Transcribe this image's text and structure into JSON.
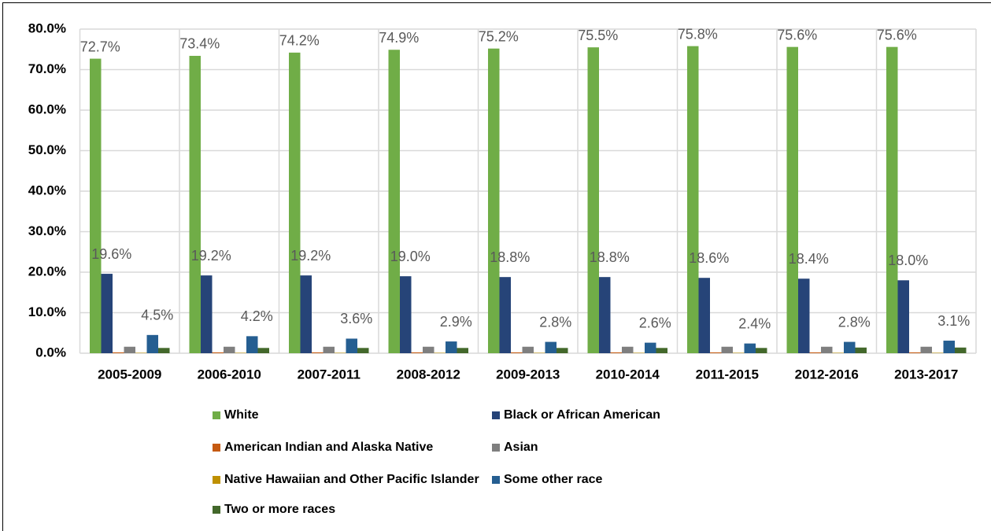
{
  "chart_data": {
    "type": "bar",
    "categories": [
      "2005-2009",
      "2006-2010",
      "2007-2011",
      "2008-2012",
      "2009-2013",
      "2010-2014",
      "2011-2015",
      "2012-2016",
      "2013-2017"
    ],
    "series": [
      {
        "name": "White",
        "color": "#70ad47",
        "values": [
          72.7,
          73.4,
          74.2,
          74.9,
          75.2,
          75.5,
          75.8,
          75.6,
          75.6
        ],
        "value_labels": [
          "72.7%",
          "73.4%",
          "74.2%",
          "74.9%",
          "75.2%",
          "75.5%",
          "75.8%",
          "75.6%",
          "75.6%"
        ]
      },
      {
        "name": "Black or African American",
        "color": "#264478",
        "values": [
          19.6,
          19.2,
          19.2,
          19.0,
          18.8,
          18.8,
          18.6,
          18.4,
          18.0
        ],
        "value_labels": [
          "19.6%",
          "19.2%",
          "19.2%",
          "19.0%",
          "18.8%",
          "18.8%",
          "18.6%",
          "18.4%",
          "18.0%"
        ]
      },
      {
        "name": "American Indian and Alaska Native",
        "color": "#c55a11",
        "values": [
          0.2,
          0.2,
          0.2,
          0.2,
          0.2,
          0.2,
          0.2,
          0.2,
          0.2
        ]
      },
      {
        "name": "Asian",
        "color": "#7f7f7f",
        "values": [
          1.6,
          1.6,
          1.6,
          1.6,
          1.6,
          1.6,
          1.6,
          1.6,
          1.6
        ]
      },
      {
        "name": "Native Hawaiian and Other Pacific Islander",
        "color": "#bf9000",
        "values": [
          0.1,
          0.1,
          0.1,
          0.1,
          0.1,
          0.1,
          0.1,
          0.1,
          0.1
        ]
      },
      {
        "name": "Some other race",
        "color": "#255e91",
        "values": [
          4.5,
          4.2,
          3.6,
          2.9,
          2.8,
          2.6,
          2.4,
          2.8,
          3.1
        ],
        "value_labels": [
          "4.5%",
          "4.2%",
          "3.6%",
          "2.9%",
          "2.8%",
          "2.6%",
          "2.4%",
          "2.8%",
          "3.1%"
        ]
      },
      {
        "name": "Two or more races",
        "color": "#43682b",
        "values": [
          1.3,
          1.3,
          1.3,
          1.3,
          1.3,
          1.3,
          1.3,
          1.4,
          1.4
        ]
      }
    ],
    "ylim": [
      0,
      80
    ],
    "yticks": [
      {
        "value": 0,
        "label": "0.0%"
      },
      {
        "value": 10,
        "label": "10.0%"
      },
      {
        "value": 20,
        "label": "20.0%"
      },
      {
        "value": 30,
        "label": "30.0%"
      },
      {
        "value": 40,
        "label": "40.0%"
      },
      {
        "value": 50,
        "label": "50.0%"
      },
      {
        "value": 60,
        "label": "60.0%"
      },
      {
        "value": 70,
        "label": "70.0%"
      },
      {
        "value": 80,
        "label": "80.0%"
      }
    ],
    "grid": true,
    "legend": "bottom"
  }
}
